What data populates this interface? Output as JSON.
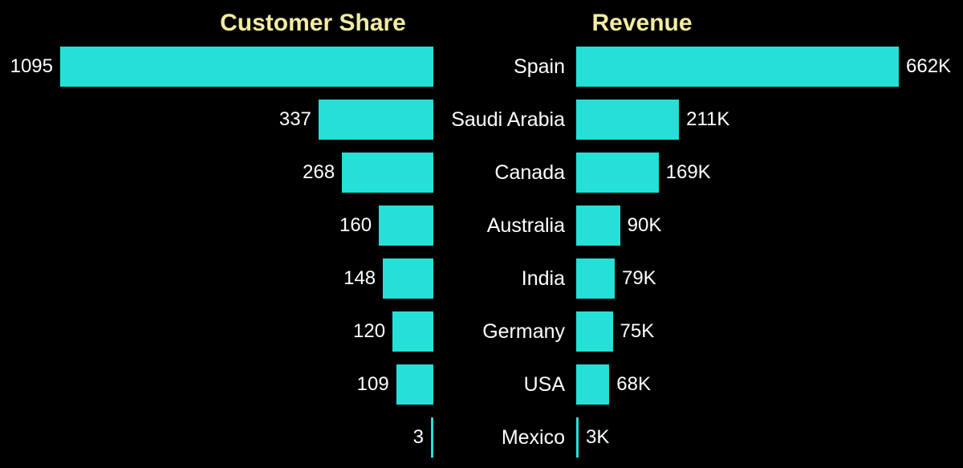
{
  "chart_data": {
    "type": "bar",
    "layout": "tornado-two-sided-horizontal",
    "background": "#000000",
    "grid": false,
    "legend_position": "none",
    "categories": [
      "Spain",
      "Saudi Arabia",
      "Canada",
      "Australia",
      "India",
      "Germany",
      "USA",
      "Mexico"
    ],
    "series": [
      {
        "name": "Customer Share",
        "side": "left",
        "values": [
          1095,
          337,
          268,
          160,
          148,
          120,
          109,
          3
        ],
        "labels": [
          "1095",
          "337",
          "268",
          "160",
          "148",
          "120",
          "109",
          "3"
        ],
        "value_range": [
          0,
          1095
        ]
      },
      {
        "name": "Revenue",
        "side": "right",
        "values": [
          662,
          211,
          169,
          90,
          79,
          75,
          68,
          3
        ],
        "labels": [
          "662K",
          "211K",
          "169K",
          "90K",
          "79K",
          "75K",
          "68K",
          "3K"
        ],
        "value_range": [
          0,
          662
        ]
      }
    ],
    "colors": {
      "bar": "#25e0d6",
      "title": "#f2eda2",
      "label": "#ffffff",
      "background": "#000000"
    }
  }
}
